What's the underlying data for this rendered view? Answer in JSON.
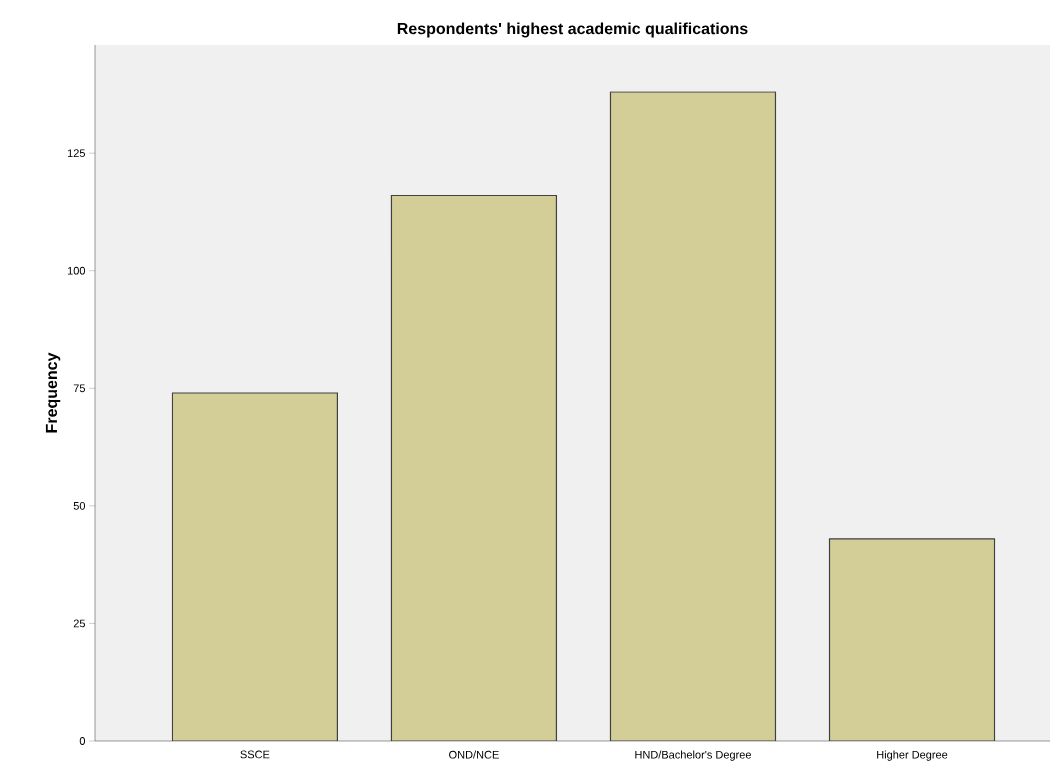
{
  "chart_data": {
    "type": "bar",
    "title": "Respondents' highest academic qualifications",
    "ylabel": "Frequency",
    "categories": [
      "SSCE",
      "OND/NCE",
      "HND/Bachelor's Degree",
      "Higher Degree"
    ],
    "values": [
      74,
      116,
      138,
      43
    ],
    "color": "#d3ce97",
    "ylim": [
      0,
      148
    ],
    "yticks": [
      0,
      25,
      50,
      75,
      100,
      125
    ],
    "grid": false
  }
}
